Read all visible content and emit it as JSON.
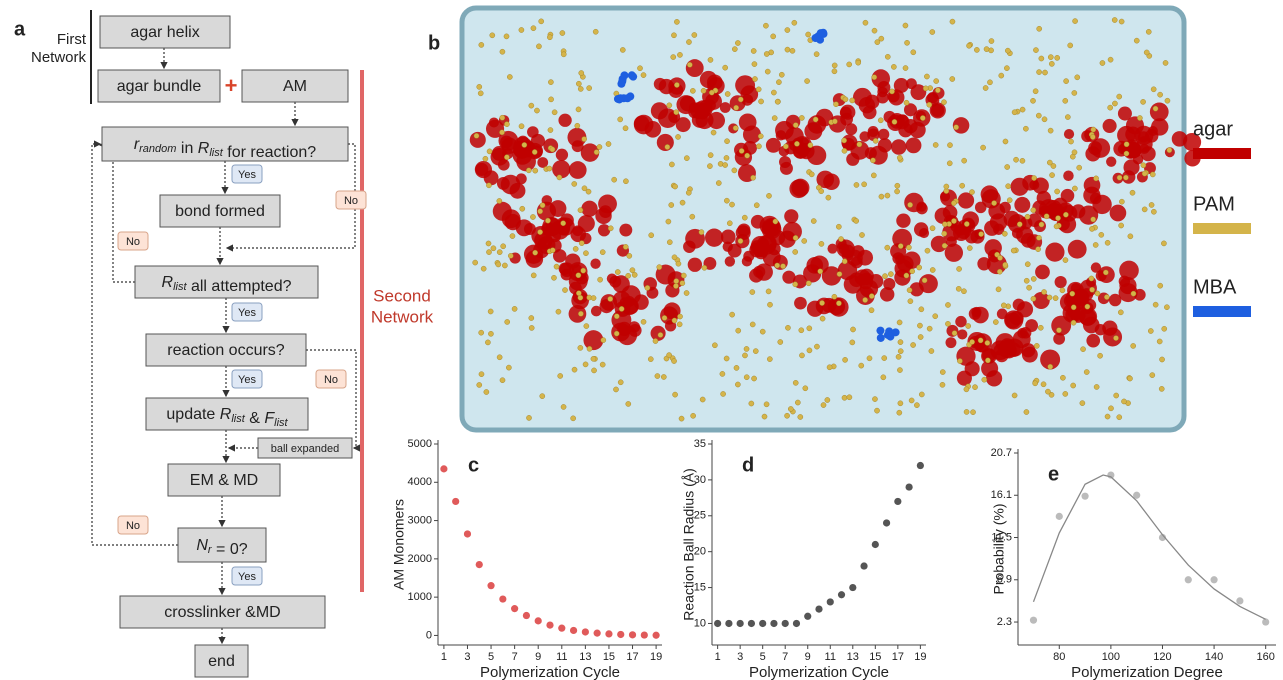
{
  "flowchart": {
    "label": "a",
    "first_network": [
      "First",
      "Network"
    ],
    "plus": "+",
    "second_network": [
      "Second",
      "Network"
    ],
    "nodes": [
      [
        "agar helix"
      ],
      [
        "agar bundle"
      ],
      [
        "AM"
      ],
      [
        {
          "i": "r"
        },
        {
          "sub": "random"
        },
        " in ",
        {
          "i": "R"
        },
        {
          "sub": "list"
        },
        " for reaction?"
      ],
      [
        "bond formed"
      ],
      [
        {
          "i": "R"
        },
        {
          "sub": "list"
        },
        " all attempted?"
      ],
      [
        "reaction occurs?"
      ],
      [
        "update ",
        {
          "i": "R"
        },
        {
          "sub": "list"
        },
        " & ",
        {
          "i": "F"
        },
        {
          "sub": "list"
        }
      ],
      [
        "ball expanded"
      ],
      [
        "EM & MD"
      ],
      [
        {
          "i": "N"
        },
        {
          "sub": "r"
        },
        " = 0?"
      ],
      [
        "crosslinker &MD"
      ],
      [
        "end"
      ]
    ],
    "badges": [
      "Yes",
      "No",
      "No",
      "Yes",
      "Yes",
      "No",
      "No",
      "Yes"
    ]
  },
  "molecular_view": {
    "label": "b",
    "legend": [
      {
        "name": "agar",
        "color": "#c00000"
      },
      {
        "name": "PAM",
        "color": "#d4b44a"
      },
      {
        "name": "MBA",
        "color": "#1e5fe0"
      }
    ]
  },
  "chart_data": [
    {
      "type": "scatter",
      "label": "c",
      "xlabel": "Polymerization Cycle",
      "ylabel": "AM Monomers",
      "xlim": [
        0.5,
        19.5
      ],
      "xticks": [
        1,
        3,
        5,
        7,
        9,
        11,
        13,
        15,
        17,
        19
      ],
      "ylim": [
        -250,
        5000
      ],
      "yticks": [
        0,
        1000,
        2000,
        3000,
        4000,
        5000
      ],
      "series": [
        {
          "color": "#e05a5a",
          "x": [
            1,
            2,
            3,
            4,
            5,
            6,
            7,
            8,
            9,
            10,
            11,
            12,
            13,
            14,
            15,
            16,
            17,
            18,
            19
          ],
          "values": [
            4350,
            3500,
            2650,
            1850,
            1300,
            950,
            700,
            520,
            380,
            270,
            190,
            130,
            90,
            60,
            40,
            25,
            15,
            10,
            5
          ]
        }
      ]
    },
    {
      "type": "scatter",
      "label": "d",
      "xlabel": "Polymerization Cycle",
      "ylabel": "Reaction Ball Radius (Å)",
      "xlim": [
        0.5,
        19.5
      ],
      "xticks": [
        1,
        3,
        5,
        7,
        9,
        11,
        13,
        15,
        17,
        19
      ],
      "ylim": [
        7,
        35
      ],
      "yticks": [
        10,
        15,
        20,
        25,
        30,
        35
      ],
      "series": [
        {
          "color": "#555555",
          "x": [
            1,
            2,
            3,
            4,
            5,
            6,
            7,
            8,
            9,
            10,
            11,
            12,
            13,
            14,
            15,
            16,
            17,
            18,
            19
          ],
          "values": [
            10,
            10,
            10,
            10,
            10,
            10,
            10,
            10,
            11,
            12,
            13,
            14,
            15,
            18,
            21,
            24,
            27,
            29,
            32
          ]
        }
      ]
    },
    {
      "type": "scatter",
      "label": "e",
      "xlabel": "Polymerization Degree",
      "ylabel": "Probability (%)",
      "xlim": [
        64,
        164
      ],
      "xticks": [
        80,
        100,
        120,
        140,
        160
      ],
      "ylim": [
        -0.2,
        20.7
      ],
      "yticks": [
        2.3,
        6.9,
        11.5,
        16.1,
        20.7
      ],
      "series": [
        {
          "color": "#bbbbbb",
          "x": [
            70,
            80,
            90,
            100,
            110,
            120,
            130,
            140,
            150,
            160
          ],
          "values": [
            2.5,
            13.8,
            16.0,
            18.3,
            16.1,
            11.5,
            6.9,
            6.9,
            4.6,
            2.3
          ]
        },
        {
          "type": "line",
          "color": "#888888",
          "x": [
            70,
            80,
            90,
            97,
            100,
            110,
            120,
            130,
            140,
            150,
            160
          ],
          "values": [
            4.5,
            12.0,
            17.3,
            18.3,
            18.1,
            15.5,
            11.8,
            8.5,
            5.9,
            4.0,
            2.6
          ]
        }
      ]
    }
  ]
}
